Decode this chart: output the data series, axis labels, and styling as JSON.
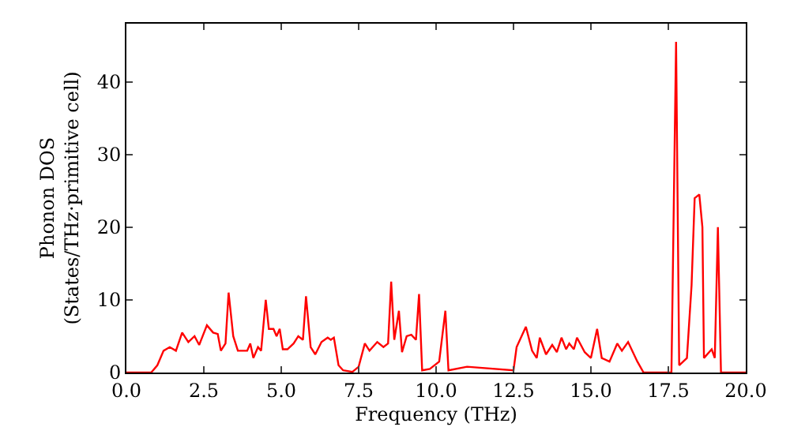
{
  "chart_data": {
    "type": "line",
    "xlabel": "Frequency (THz)",
    "ylabel": "Phonon DOS\n(States/THz·primitive cell)",
    "xlim": [
      0,
      20
    ],
    "ylim": [
      0,
      48
    ],
    "xticks": [
      {
        "value": 0,
        "label": "0.0"
      },
      {
        "value": 2.5,
        "label": "2.5"
      },
      {
        "value": 5,
        "label": "5.0"
      },
      {
        "value": 7.5,
        "label": "7.5"
      },
      {
        "value": 10,
        "label": "10.0"
      },
      {
        "value": 12.5,
        "label": "12.5"
      },
      {
        "value": 15,
        "label": "15.0"
      },
      {
        "value": 17.5,
        "label": "17.5"
      },
      {
        "value": 20,
        "label": "20.0"
      }
    ],
    "yticks": [
      0,
      10,
      20,
      30,
      40
    ],
    "grid": false,
    "marker": "none",
    "line_style": "solid",
    "series": [
      {
        "color": "#ff0000",
        "x": [
          0,
          0.8,
          1.0,
          1.2,
          1.4,
          1.6,
          1.8,
          2.0,
          2.2,
          2.35,
          2.6,
          2.8,
          2.95,
          3.05,
          3.2,
          3.3,
          3.45,
          3.6,
          3.9,
          4.0,
          4.1,
          4.25,
          4.35,
          4.5,
          4.6,
          4.75,
          4.85,
          4.95,
          5.05,
          5.2,
          5.4,
          5.55,
          5.7,
          5.8,
          5.95,
          6.1,
          6.3,
          6.5,
          6.6,
          6.7,
          6.85,
          7.0,
          7.3,
          7.5,
          7.7,
          7.85,
          8.1,
          8.3,
          8.45,
          8.55,
          8.65,
          8.8,
          8.9,
          9.05,
          9.2,
          9.35,
          9.45,
          9.55,
          9.8,
          10.1,
          10.3,
          10.4,
          11.0,
          12.5,
          12.6,
          12.9,
          13.1,
          13.25,
          13.35,
          13.55,
          13.75,
          13.9,
          14.05,
          14.2,
          14.3,
          14.45,
          14.55,
          14.8,
          15.0,
          15.2,
          15.35,
          15.6,
          15.85,
          16.0,
          16.2,
          16.5,
          16.7,
          17.6,
          17.75,
          17.85,
          18.1,
          18.25,
          18.35,
          18.5,
          18.6,
          18.65,
          18.9,
          19.0,
          19.1,
          19.2,
          20
        ],
        "values": [
          0,
          0,
          1,
          3,
          3.5,
          3,
          5.5,
          4.2,
          5,
          3.8,
          6.5,
          5.5,
          5.3,
          3,
          4,
          11,
          5,
          3,
          3,
          4,
          2,
          3.5,
          3,
          10,
          6,
          6,
          5,
          6,
          3.2,
          3.2,
          4,
          5,
          4.5,
          10.5,
          3.5,
          2.5,
          4.2,
          4.8,
          4.5,
          4.8,
          1,
          0.3,
          0.1,
          0.8,
          4,
          3,
          4.2,
          3.5,
          4,
          12.5,
          4.5,
          8.5,
          2.8,
          5,
          5.2,
          4.5,
          10.8,
          0.3,
          0.5,
          1.5,
          8.5,
          0.3,
          0.8,
          0.3,
          3.5,
          6.3,
          3,
          2,
          4.8,
          2.5,
          3.8,
          2.8,
          4.8,
          3.2,
          4,
          3.2,
          4.8,
          2.8,
          2,
          6,
          2,
          1.5,
          4,
          3,
          4.2,
          1.5,
          0,
          0,
          45.5,
          1,
          2,
          12,
          24,
          24.5,
          20,
          2,
          3.2,
          2,
          20,
          0,
          0
        ]
      }
    ]
  }
}
